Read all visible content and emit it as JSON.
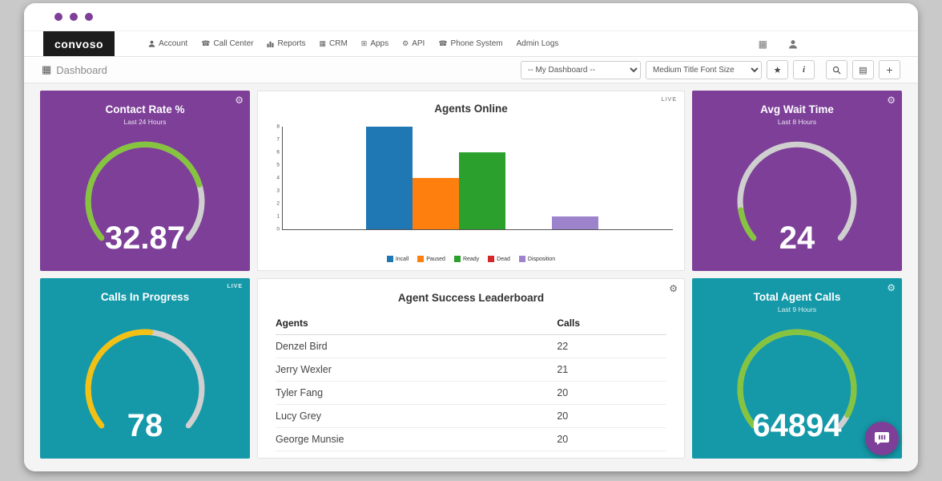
{
  "page": {
    "outer_background": "#c9c9c9",
    "accent_purple": "#7d3f98",
    "accent_teal": "#1599a8"
  },
  "titlebar": {
    "dot_color": "#7d3f98"
  },
  "navbar": {
    "logo_text": "convoso",
    "items": [
      {
        "label": "Account",
        "icon": "user-icon"
      },
      {
        "label": "Call Center",
        "icon": "phone-icon"
      },
      {
        "label": "Reports",
        "icon": "bar-chart-icon"
      },
      {
        "label": "CRM",
        "icon": "grid-icon"
      },
      {
        "label": "Apps",
        "icon": "apps-grid-icon"
      },
      {
        "label": "API",
        "icon": "gear-icon"
      },
      {
        "label": "Phone System",
        "icon": "phone-icon"
      },
      {
        "label": "Admin Logs",
        "icon": ""
      }
    ]
  },
  "toolbar": {
    "page_title": "Dashboard",
    "dashboard_select": "-- My Dashboard --",
    "font_size_select": "Medium Title Font Size"
  },
  "icons": {
    "gear": "⚙",
    "dashboard_grid": "▦",
    "phone": "☎",
    "crm_grid": "▦",
    "apps_grid": "⊞",
    "calculator": "▦",
    "star": "★",
    "info": "i",
    "list": "▤",
    "plus": "+"
  },
  "chart_data": [
    {
      "type": "gauge",
      "title": "Contact Rate %",
      "subtitle": "Last 24 Hours",
      "value": "32.87",
      "fraction": 0.78,
      "arc_color": "#86c440",
      "track_color": "#cfcfcf",
      "bg_color": "#7d3f98",
      "live_badge": ""
    },
    {
      "type": "bar",
      "title": "Agents Online",
      "live_badge": "LIVE",
      "categories": [
        "Incall",
        "Paused",
        "Ready",
        "Dead",
        "Disposition"
      ],
      "values": [
        8,
        4,
        6,
        0,
        1
      ],
      "colors": [
        "#1f77b4",
        "#ff7f0e",
        "#2ca02c",
        "#d62728",
        "#9c83cb"
      ],
      "ylim": [
        0,
        8
      ],
      "yticks": [
        0,
        1,
        2,
        3,
        4,
        5,
        6,
        7,
        8
      ],
      "legend_position": "bottom"
    },
    {
      "type": "gauge",
      "title": "Avg Wait Time",
      "subtitle": "Last 8 Hours",
      "value": "24",
      "fraction": 0.12,
      "arc_color": "#86c440",
      "track_color": "#cfcfcf",
      "bg_color": "#7d3f98",
      "live_badge": ""
    },
    {
      "type": "gauge",
      "title": "Calls In Progress",
      "subtitle": "",
      "value": "78",
      "fraction": 0.52,
      "arc_color": "#f2c113",
      "track_color": "#cfcfcf",
      "bg_color": "#1599a8",
      "live_badge": "LIVE"
    },
    {
      "type": "table",
      "title": "Agent Success Leaderboard",
      "columns": [
        "Agents",
        "Calls"
      ],
      "rows": [
        [
          "Denzel Bird",
          "22"
        ],
        [
          "Jerry Wexler",
          "21"
        ],
        [
          "Tyler Fang",
          "20"
        ],
        [
          "Lucy Grey",
          "20"
        ],
        [
          "George Munsie",
          "20"
        ]
      ]
    },
    {
      "type": "gauge",
      "title": "Total Agent Calls",
      "subtitle": "Last 9 Hours",
      "value": "64894",
      "fraction": 0.95,
      "arc_color": "#86c440",
      "track_color": "#cfcfcf",
      "bg_color": "#1599a8",
      "live_badge": ""
    }
  ]
}
